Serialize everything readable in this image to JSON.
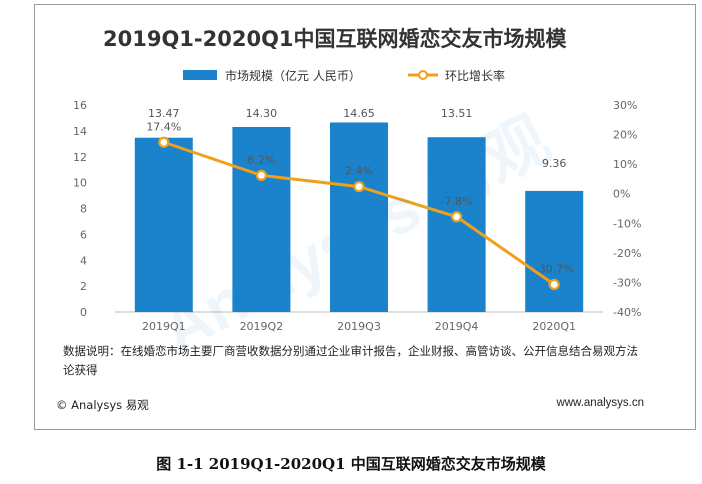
{
  "chart_data": {
    "type": "bar",
    "title": "2019Q1-2020Q1中国互联网婚恋交友市场规模",
    "categories": [
      "2019Q1",
      "2019Q2",
      "2019Q3",
      "2019Q4",
      "2020Q1"
    ],
    "series": [
      {
        "name": "市场规模（亿元 人民币）",
        "type": "bar",
        "axis": "left",
        "values": [
          13.47,
          14.3,
          14.65,
          13.51,
          9.36
        ],
        "labels": [
          "13.47",
          "14.30",
          "14.65",
          "13.51",
          "9.36"
        ]
      },
      {
        "name": "环比增长率",
        "type": "line",
        "axis": "right",
        "values": [
          17.4,
          6.2,
          2.4,
          -7.8,
          -30.7
        ],
        "labels": [
          "17.4%",
          "6.2%",
          "2.4%",
          "-7.8%",
          "-30.7%"
        ]
      }
    ],
    "y_left": {
      "range": [
        0,
        16
      ],
      "ticks": [
        "0",
        "2",
        "4",
        "6",
        "8",
        "10",
        "12",
        "14",
        "16"
      ]
    },
    "y_right": {
      "range": [
        -40,
        30
      ],
      "ticks": [
        "-40%",
        "-30%",
        "-20%",
        "-10%",
        "0%",
        "10%",
        "20%",
        "30%"
      ]
    },
    "legend_position": "top-center",
    "grid": false,
    "colors": {
      "bar": "#1a83cc",
      "line": "#f0a01a"
    }
  },
  "note": "数据说明：在线婚恋市场主要厂商营收数据分别通过企业审计报告，企业财报、高管访谈、公开信息结合易观方法论获得",
  "footer": {
    "left": "© Analysys 易观",
    "right": "www.analysys.cn"
  },
  "caption": "图 1-1  2019Q1-2020Q1 中国互联网婚恋交友市场规模",
  "watermark": "Analysys 易观"
}
